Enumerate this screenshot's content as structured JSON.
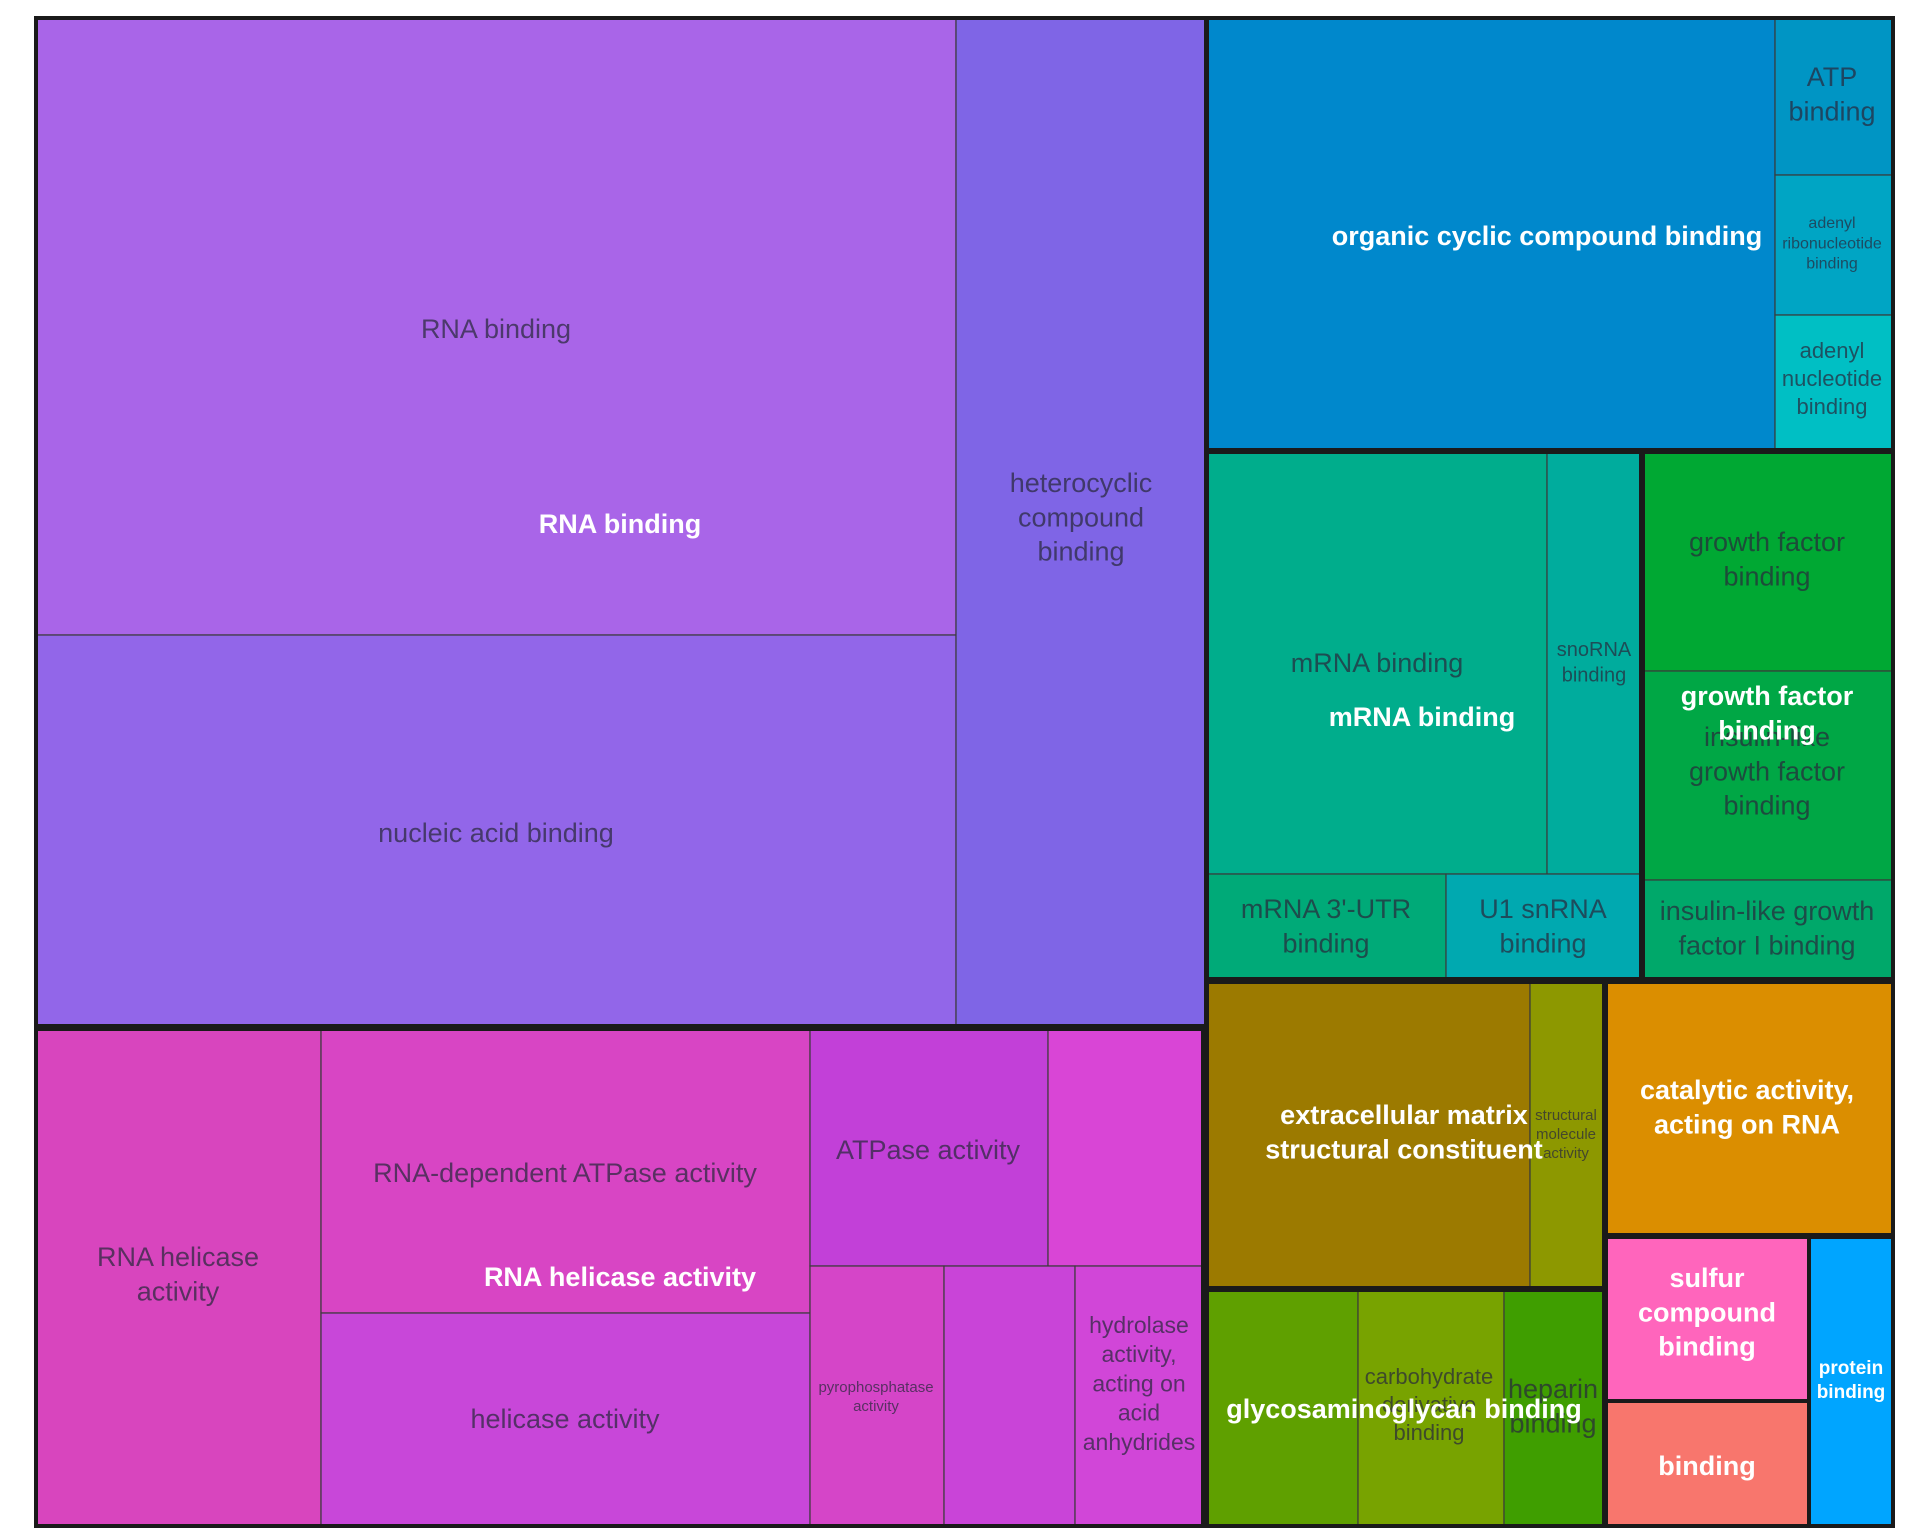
{
  "chart_data": {
    "type": "treemap",
    "title": "",
    "groups": [
      {
        "label": "RNA binding",
        "tiles": [
          {
            "label": "RNA binding",
            "color": "#A965E8"
          },
          {
            "label": "nucleic acid binding",
            "color": "#9266E9"
          },
          {
            "label": "heterocyclic compound binding",
            "color": "#7F65E6"
          }
        ]
      },
      {
        "label": "RNA helicase activity",
        "tiles": [
          {
            "label": "RNA helicase activity",
            "color": "#D845BE"
          },
          {
            "label": "RNA-dependent ATPase activity",
            "color": "#D845C4"
          },
          {
            "label": "helicase activity",
            "color": "#C847D9"
          },
          {
            "label": "ATPase activity",
            "color": "#C240D8"
          },
          {
            "label": "",
            "color": "#D945D6"
          },
          {
            "label": "pyrophosphatase activity",
            "color": "#D545C8"
          },
          {
            "label": "",
            "color": "#C944D8"
          },
          {
            "label": "hydrolase activity, acting on acid anhydrides",
            "color": "#D146D8"
          }
        ]
      },
      {
        "label": "organic cyclic compound binding",
        "tiles": [
          {
            "label": "organic cyclic compound binding",
            "color": "#0088CC"
          },
          {
            "label": "ATP binding",
            "color": "#0095C4"
          },
          {
            "label": "adenyl ribonucleotide binding",
            "color": "#00A5C4"
          },
          {
            "label": "adenyl nucleotide binding",
            "color": "#00BFC4"
          }
        ]
      },
      {
        "label": "mRNA binding",
        "tiles": [
          {
            "label": "mRNA binding",
            "color": "#00AD8C"
          },
          {
            "label": "snoRNA binding",
            "color": "#00AC9D"
          },
          {
            "label": "mRNA 3'-UTR binding",
            "color": "#00AA78"
          },
          {
            "label": "U1 snRNA binding",
            "color": "#00A9B0"
          }
        ]
      },
      {
        "label": "growth factor binding",
        "tiles": [
          {
            "label": "growth factor binding",
            "color": "#00A833"
          },
          {
            "label": "insulin-like growth factor binding",
            "color": "#00A745"
          },
          {
            "label": "insulin-like growth factor I binding",
            "color": "#00A86A"
          }
        ]
      },
      {
        "label": "extracellular matrix structural constituent",
        "tiles": [
          {
            "label": "extracellular matrix structural constituent",
            "color": "#9C7A00"
          },
          {
            "label": "structural molecule activity",
            "color": "#8D9800"
          }
        ]
      },
      {
        "label": "catalytic activity, acting on RNA",
        "tiles": [
          {
            "label": "catalytic activity, acting on RNA",
            "color": "#DB8E00"
          }
        ]
      },
      {
        "label": "glycosaminoglycan binding",
        "tiles": [
          {
            "label": "glycosaminoglycan binding",
            "color": "#5FA000"
          },
          {
            "label": "carbohydrate derivative binding",
            "color": "#78A300"
          },
          {
            "label": "heparin binding",
            "color": "#3F9E00"
          }
        ]
      },
      {
        "label": "sulfur compound binding",
        "tiles": [
          {
            "label": "sulfur compound binding",
            "color": "#FF65BC"
          }
        ]
      },
      {
        "label": "binding",
        "tiles": [
          {
            "label": "binding",
            "color": "#F8766D"
          }
        ]
      },
      {
        "label": "protein binding",
        "tiles": [
          {
            "label": "protein binding",
            "color": "#00A5FF"
          }
        ]
      }
    ]
  }
}
